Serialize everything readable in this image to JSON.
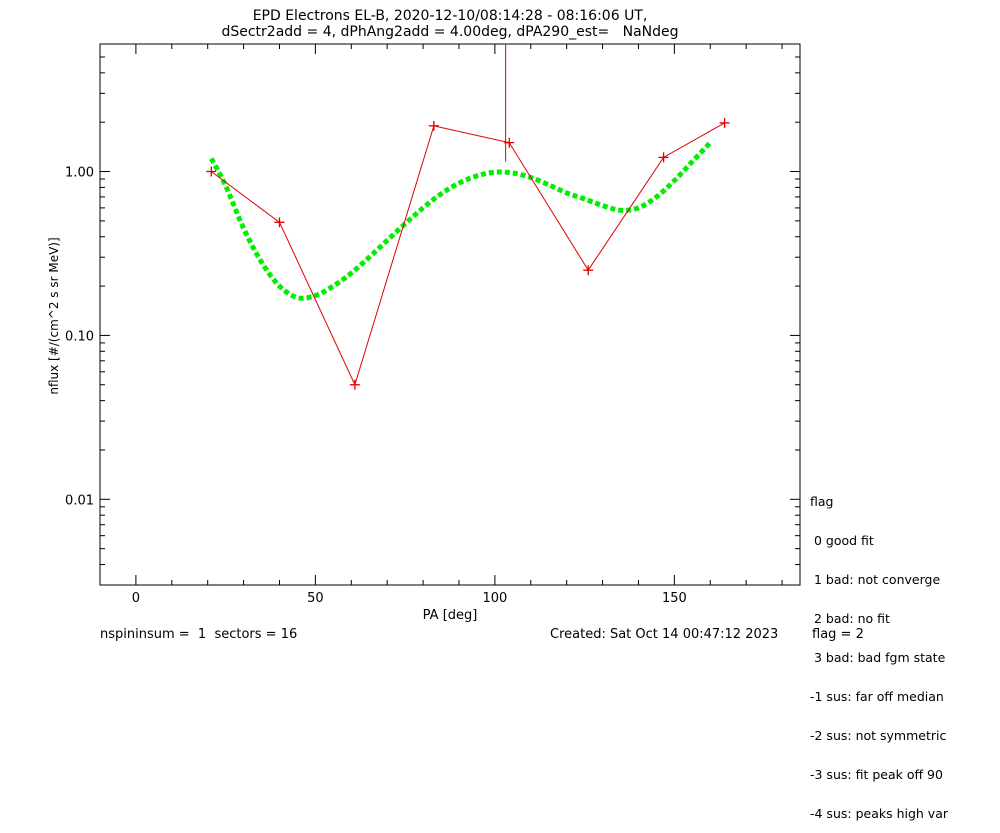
{
  "title_line1": "EPD Electrons EL-B, 2020-12-10/08:14:28 - 08:16:06 UT,",
  "title_line2": "dSectr2add = 4, dPhAng2add = 4.00deg, dPA290_est=   NaNdeg",
  "footer": {
    "left": "nspininsum =  1  sectors = 16",
    "created": "Created: Sat Oct 14 00:47:12 2023",
    "flag": "flag = 2"
  },
  "legend": {
    "title": "flag",
    "items": [
      " 0 good fit",
      " 1 bad: not converge",
      " 2 bad: no fit",
      " 3 bad: bad fgm state",
      "-1 sus: far off median",
      "-2 sus: not symmetric",
      "-3 sus: fit peak off 90",
      "-4 sus: peaks high var"
    ]
  },
  "colors": {
    "data": "#dd0000",
    "fit": "#00ee00",
    "axes": "#000000"
  },
  "chart_data": {
    "type": "line",
    "xlabel": "PA [deg]",
    "ylabel": "nflux [#/(cm^2 s sr MeV)]",
    "xlim": [
      -10,
      185
    ],
    "ylim": [
      0.003,
      6
    ],
    "yscale": "log",
    "xticks": [
      0,
      50,
      100,
      150
    ],
    "yticks": [
      0.01,
      0.1,
      1.0
    ],
    "ytick_labels": [
      "0.01",
      "0.10",
      "1.00"
    ],
    "series": [
      {
        "style": "red line with plus markers",
        "x": [
          21,
          40,
          61,
          83,
          104,
          126,
          147,
          164
        ],
        "y": [
          1.0,
          0.49,
          0.05,
          1.9,
          1.5,
          0.25,
          1.22,
          1.98
        ]
      },
      {
        "style": "green dashed fit curve",
        "x": [
          21,
          25,
          30,
          35,
          40,
          45,
          50,
          55,
          60,
          65,
          70,
          75,
          80,
          85,
          90,
          95,
          100,
          105,
          110,
          115,
          120,
          125,
          130,
          135,
          140,
          145,
          150,
          155,
          160
        ],
        "y": [
          1.2,
          0.82,
          0.45,
          0.28,
          0.2,
          0.17,
          0.175,
          0.2,
          0.24,
          0.3,
          0.38,
          0.48,
          0.6,
          0.73,
          0.85,
          0.94,
          0.99,
          0.98,
          0.92,
          0.83,
          0.74,
          0.68,
          0.62,
          0.58,
          0.6,
          0.7,
          0.88,
          1.15,
          1.5
        ]
      }
    ],
    "error_bars": [
      {
        "x": 103,
        "y_low": 1.15,
        "y_high": 6
      }
    ]
  }
}
